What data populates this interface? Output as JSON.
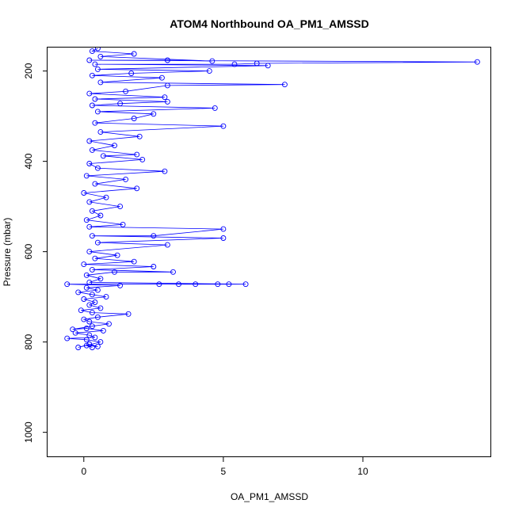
{
  "chart_data": {
    "type": "line",
    "title": "ATOM4 Northbound OA_PM1_AMSSD",
    "xlabel": "OA_PM1_AMSSD",
    "ylabel": "Pressure (mbar)",
    "xlim": [
      -1.3,
      14.6
    ],
    "ylim": [
      1055,
      148
    ],
    "y_inverted": true,
    "x_ticks": [
      0,
      5,
      10
    ],
    "y_ticks": [
      200,
      400,
      600,
      800,
      1000
    ],
    "grid": false,
    "legend": "none",
    "series_color": "#0000ff",
    "marker": "open-circle",
    "series": [
      {
        "values": [
          {
            "x": 0.3,
            "y": 812
          },
          {
            "x": 0.1,
            "y": 808
          },
          {
            "x": 0.5,
            "y": 810
          },
          {
            "x": 0.2,
            "y": 805
          },
          {
            "x": -0.2,
            "y": 812
          },
          {
            "x": 0.6,
            "y": 800
          },
          {
            "x": 0.1,
            "y": 795
          },
          {
            "x": -0.6,
            "y": 792
          },
          {
            "x": 0.4,
            "y": 790
          },
          {
            "x": 0.2,
            "y": 785
          },
          {
            "x": -0.3,
            "y": 780
          },
          {
            "x": 0.7,
            "y": 775
          },
          {
            "x": 0.1,
            "y": 770
          },
          {
            "x": -0.4,
            "y": 772
          },
          {
            "x": 0.3,
            "y": 765
          },
          {
            "x": 0.9,
            "y": 760
          },
          {
            "x": 0.2,
            "y": 755
          },
          {
            "x": 0.0,
            "y": 750
          },
          {
            "x": 0.5,
            "y": 745
          },
          {
            "x": 1.6,
            "y": 738
          },
          {
            "x": 0.3,
            "y": 735
          },
          {
            "x": -0.1,
            "y": 730
          },
          {
            "x": 0.6,
            "y": 725
          },
          {
            "x": 0.2,
            "y": 718
          },
          {
            "x": 0.4,
            "y": 712
          },
          {
            "x": 0.0,
            "y": 705
          },
          {
            "x": 0.8,
            "y": 700
          },
          {
            "x": 0.3,
            "y": 695
          },
          {
            "x": -0.2,
            "y": 690
          },
          {
            "x": 0.5,
            "y": 685
          },
          {
            "x": 0.1,
            "y": 680
          },
          {
            "x": 1.3,
            "y": 675
          },
          {
            "x": -0.6,
            "y": 672
          },
          {
            "x": 2.7,
            "y": 672
          },
          {
            "x": 3.4,
            "y": 672
          },
          {
            "x": 4.0,
            "y": 672
          },
          {
            "x": 4.8,
            "y": 672
          },
          {
            "x": 5.2,
            "y": 672
          },
          {
            "x": 5.8,
            "y": 672
          },
          {
            "x": 0.2,
            "y": 668
          },
          {
            "x": 0.6,
            "y": 660
          },
          {
            "x": 0.1,
            "y": 652
          },
          {
            "x": 1.1,
            "y": 645
          },
          {
            "x": 3.2,
            "y": 645
          },
          {
            "x": 0.3,
            "y": 640
          },
          {
            "x": 2.5,
            "y": 633
          },
          {
            "x": 0.0,
            "y": 628
          },
          {
            "x": 1.8,
            "y": 622
          },
          {
            "x": 0.4,
            "y": 615
          },
          {
            "x": 1.2,
            "y": 608
          },
          {
            "x": 0.2,
            "y": 600
          },
          {
            "x": 3.0,
            "y": 585
          },
          {
            "x": 0.5,
            "y": 580
          },
          {
            "x": 5.0,
            "y": 570
          },
          {
            "x": 0.3,
            "y": 565
          },
          {
            "x": 2.5,
            "y": 565
          },
          {
            "x": 5.0,
            "y": 550
          },
          {
            "x": 0.2,
            "y": 545
          },
          {
            "x": 1.4,
            "y": 540
          },
          {
            "x": 0.1,
            "y": 530
          },
          {
            "x": 0.6,
            "y": 520
          },
          {
            "x": 0.3,
            "y": 510
          },
          {
            "x": 1.3,
            "y": 500
          },
          {
            "x": 0.2,
            "y": 490
          },
          {
            "x": 0.8,
            "y": 480
          },
          {
            "x": 0.0,
            "y": 470
          },
          {
            "x": 1.9,
            "y": 460
          },
          {
            "x": 0.4,
            "y": 450
          },
          {
            "x": 1.5,
            "y": 440
          },
          {
            "x": 0.1,
            "y": 432
          },
          {
            "x": 2.9,
            "y": 422
          },
          {
            "x": 0.5,
            "y": 415
          },
          {
            "x": 0.2,
            "y": 405
          },
          {
            "x": 2.1,
            "y": 396
          },
          {
            "x": 0.7,
            "y": 388
          },
          {
            "x": 1.9,
            "y": 385
          },
          {
            "x": 0.3,
            "y": 375
          },
          {
            "x": 1.1,
            "y": 365
          },
          {
            "x": 0.2,
            "y": 355
          },
          {
            "x": 2.0,
            "y": 345
          },
          {
            "x": 0.6,
            "y": 335
          },
          {
            "x": 5.0,
            "y": 322
          },
          {
            "x": 0.4,
            "y": 315
          },
          {
            "x": 1.8,
            "y": 305
          },
          {
            "x": 2.5,
            "y": 295
          },
          {
            "x": 0.5,
            "y": 290
          },
          {
            "x": 4.7,
            "y": 282
          },
          {
            "x": 0.3,
            "y": 276
          },
          {
            "x": 1.3,
            "y": 272
          },
          {
            "x": 3.0,
            "y": 268
          },
          {
            "x": 0.4,
            "y": 262
          },
          {
            "x": 2.9,
            "y": 258
          },
          {
            "x": 0.2,
            "y": 250
          },
          {
            "x": 1.5,
            "y": 245
          },
          {
            "x": 3.0,
            "y": 232
          },
          {
            "x": 7.2,
            "y": 230
          },
          {
            "x": 0.6,
            "y": 225
          },
          {
            "x": 2.8,
            "y": 215
          },
          {
            "x": 0.3,
            "y": 210
          },
          {
            "x": 1.7,
            "y": 205
          },
          {
            "x": 4.5,
            "y": 200
          },
          {
            "x": 0.5,
            "y": 196
          },
          {
            "x": 6.6,
            "y": 188
          },
          {
            "x": 0.4,
            "y": 185
          },
          {
            "x": 5.4,
            "y": 185
          },
          {
            "x": 6.2,
            "y": 183
          },
          {
            "x": 14.1,
            "y": 180
          },
          {
            "x": 0.2,
            "y": 176
          },
          {
            "x": 3.0,
            "y": 176
          },
          {
            "x": 4.6,
            "y": 178
          },
          {
            "x": 0.6,
            "y": 168
          },
          {
            "x": 1.8,
            "y": 162
          },
          {
            "x": 0.3,
            "y": 156
          },
          {
            "x": 0.5,
            "y": 150
          }
        ]
      }
    ]
  }
}
